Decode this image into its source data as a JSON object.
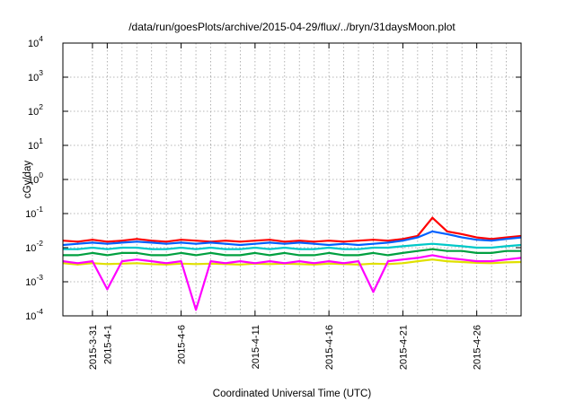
{
  "chart_data": {
    "type": "line",
    "title": "/data/run/goesPlots/archive/2015-04-29/flux/../bryn/31daysMoon.plot",
    "xlabel": "Coordinated Universal Time (UTC)",
    "ylabel": "cGy/day",
    "yscale": "log",
    "ylim": [
      0.0001,
      10000
    ],
    "xlim": [
      "2015-03-29",
      "2015-04-29"
    ],
    "grid": true,
    "y_ticks": [
      {
        "value": 0.0001,
        "base": "10",
        "exp": "-4"
      },
      {
        "value": 0.001,
        "base": "10",
        "exp": "-3"
      },
      {
        "value": 0.01,
        "base": "10",
        "exp": "-2"
      },
      {
        "value": 0.1,
        "base": "10",
        "exp": "-1"
      },
      {
        "value": 1,
        "base": "10",
        "exp": "0"
      },
      {
        "value": 10,
        "base": "10",
        "exp": "1"
      },
      {
        "value": 100,
        "base": "10",
        "exp": "2"
      },
      {
        "value": 1000,
        "base": "10",
        "exp": "3"
      },
      {
        "value": 10000,
        "base": "10",
        "exp": "4"
      }
    ],
    "x_ticks": [
      {
        "date": "2015-03-31",
        "label": "2015-3-31"
      },
      {
        "date": "2015-04-01",
        "label": "2015-4-1"
      },
      {
        "date": "2015-04-06",
        "label": "2015-4-6"
      },
      {
        "date": "2015-04-11",
        "label": "2015-4-11"
      },
      {
        "date": "2015-04-16",
        "label": "2015-4-16"
      },
      {
        "date": "2015-04-21",
        "label": "2015-4-21"
      },
      {
        "date": "2015-04-26",
        "label": "2015-4-26"
      }
    ],
    "x_grid_dates": [
      "2015-03-31",
      "2015-04-01",
      "2015-04-02",
      "2015-04-03",
      "2015-04-04",
      "2015-04-05",
      "2015-04-06",
      "2015-04-07",
      "2015-04-08",
      "2015-04-09",
      "2015-04-10",
      "2015-04-11",
      "2015-04-12",
      "2015-04-13",
      "2015-04-14",
      "2015-04-15",
      "2015-04-16",
      "2015-04-17",
      "2015-04-18",
      "2015-04-19",
      "2015-04-20",
      "2015-04-21",
      "2015-04-22",
      "2015-04-23",
      "2015-04-24",
      "2015-04-25",
      "2015-04-26",
      "2015-04-27",
      "2015-04-28"
    ],
    "x_grid_values": [
      2,
      3,
      4,
      5,
      6,
      7,
      8,
      9,
      10,
      11,
      12,
      13,
      14,
      15,
      16,
      17,
      18,
      19,
      20,
      21,
      22,
      23,
      24,
      25,
      26,
      27,
      28,
      29,
      30
    ],
    "series_x": [
      0,
      1,
      2,
      3,
      4,
      5,
      6,
      7,
      8,
      9,
      10,
      11,
      12,
      13,
      14,
      15,
      16,
      17,
      18,
      19,
      20,
      21,
      22,
      23,
      24,
      25,
      26,
      27,
      28,
      29,
      30,
      31
    ],
    "series": [
      {
        "color": "#ff0000",
        "values": [
          0.016,
          0.015,
          0.017,
          0.015,
          0.016,
          0.018,
          0.016,
          0.015,
          0.017,
          0.016,
          0.015,
          0.016,
          0.015,
          0.016,
          0.017,
          0.015,
          0.016,
          0.015,
          0.016,
          0.015,
          0.016,
          0.017,
          0.016,
          0.018,
          0.022,
          0.075,
          0.03,
          0.025,
          0.02,
          0.018,
          0.02,
          0.022
        ]
      },
      {
        "color": "#0060ff",
        "values": [
          0.012,
          0.013,
          0.014,
          0.013,
          0.014,
          0.015,
          0.014,
          0.013,
          0.014,
          0.013,
          0.014,
          0.013,
          0.012,
          0.013,
          0.014,
          0.013,
          0.014,
          0.013,
          0.012,
          0.013,
          0.012,
          0.013,
          0.014,
          0.016,
          0.02,
          0.03,
          0.025,
          0.02,
          0.017,
          0.016,
          0.018,
          0.02
        ]
      },
      {
        "color": "#00c8c8",
        "values": [
          0.009,
          0.009,
          0.01,
          0.009,
          0.01,
          0.01,
          0.009,
          0.009,
          0.01,
          0.009,
          0.01,
          0.009,
          0.009,
          0.01,
          0.009,
          0.01,
          0.009,
          0.009,
          0.01,
          0.009,
          0.009,
          0.01,
          0.01,
          0.011,
          0.012,
          0.013,
          0.012,
          0.011,
          0.01,
          0.01,
          0.011,
          0.012
        ]
      },
      {
        "color": "#00a040",
        "values": [
          0.006,
          0.006,
          0.007,
          0.006,
          0.007,
          0.007,
          0.006,
          0.006,
          0.007,
          0.006,
          0.007,
          0.006,
          0.006,
          0.007,
          0.006,
          0.007,
          0.006,
          0.006,
          0.007,
          0.006,
          0.006,
          0.007,
          0.006,
          0.007,
          0.008,
          0.009,
          0.008,
          0.008,
          0.007,
          0.007,
          0.008,
          0.008
        ]
      },
      {
        "color": "#e0e000",
        "values": [
          0.0035,
          0.0032,
          0.0035,
          0.0033,
          0.0034,
          0.0035,
          0.0033,
          0.0032,
          0.0034,
          0.0033,
          0.0034,
          0.0033,
          0.0032,
          0.0034,
          0.0033,
          0.0034,
          0.0033,
          0.0032,
          0.0034,
          0.0033,
          0.0032,
          0.0034,
          0.0033,
          0.0035,
          0.004,
          0.0045,
          0.004,
          0.0038,
          0.0036,
          0.0035,
          0.0037,
          0.0038
        ]
      },
      {
        "color": "#ff00ff",
        "values": [
          0.004,
          0.0035,
          0.004,
          0.0006,
          0.004,
          0.0045,
          0.004,
          0.0035,
          0.004,
          0.00015,
          0.004,
          0.0035,
          0.004,
          0.0035,
          0.004,
          0.0035,
          0.004,
          0.0035,
          0.004,
          0.0035,
          0.004,
          0.0005,
          0.004,
          0.0045,
          0.005,
          0.006,
          0.005,
          0.0045,
          0.004,
          0.004,
          0.0045,
          0.005
        ]
      }
    ]
  }
}
